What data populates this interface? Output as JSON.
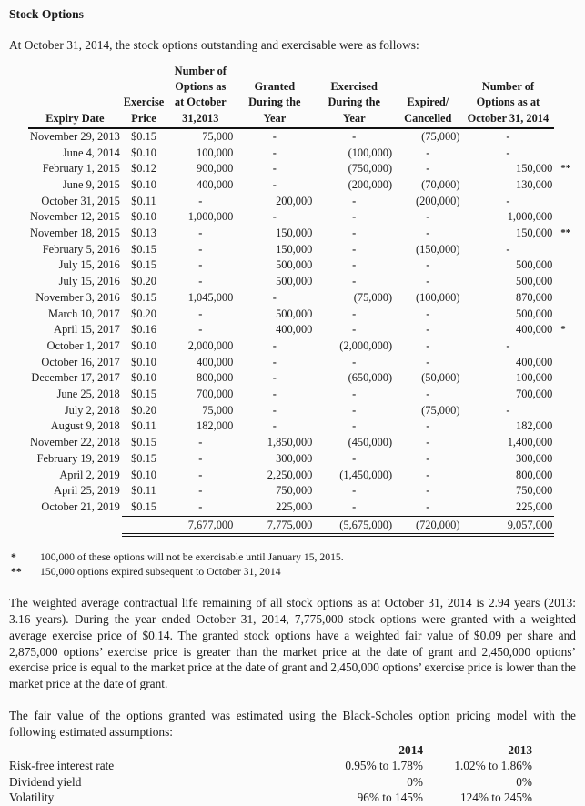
{
  "colors": {
    "background": "#fbfbfb",
    "text": "#1b1b1b",
    "rule": "#111111"
  },
  "page": {
    "title": "Stock Options",
    "intro": "At October 31, 2014, the stock options outstanding and exercisable were as follows:"
  },
  "options_table": {
    "headers": [
      "Expiry Date",
      "Exercise\nPrice",
      "Number of\nOptions as\nat October\n31,2013",
      "Granted\nDuring the\nYear",
      "Exercised\nDuring the\nYear",
      "Expired/\nCancelled",
      "Number of\nOptions as at\nOctober 31, 2014",
      ""
    ],
    "rows": [
      [
        "November 29, 2013",
        "$0.15",
        "75,000",
        "-",
        "-",
        "(75,000)",
        "-",
        ""
      ],
      [
        "June 4, 2014",
        "$0.10",
        "100,000",
        "-",
        "(100,000)",
        "-",
        "-",
        ""
      ],
      [
        "February 1, 2015",
        "$0.12",
        "900,000",
        "-",
        "(750,000)",
        "-",
        "150,000",
        "**"
      ],
      [
        "June 9, 2015",
        "$0.10",
        "400,000",
        "-",
        "(200,000)",
        "(70,000)",
        "130,000",
        ""
      ],
      [
        "October 31, 2015",
        "$0.11",
        "-",
        "200,000",
        "-",
        "(200,000)",
        "-",
        ""
      ],
      [
        "November 12, 2015",
        "$0.10",
        "1,000,000",
        "-",
        "-",
        "-",
        "1,000,000",
        ""
      ],
      [
        "November 18, 2015",
        "$0.13",
        "-",
        "150,000",
        "-",
        "-",
        "150,000",
        "**"
      ],
      [
        "February 5, 2016",
        "$0.15",
        "-",
        "150,000",
        "-",
        "(150,000)",
        "-",
        ""
      ],
      [
        "July 15, 2016",
        "$0.15",
        "-",
        "500,000",
        "-",
        "-",
        "500,000",
        ""
      ],
      [
        "July 15, 2016",
        "$0.20",
        "-",
        "500,000",
        "-",
        "-",
        "500,000",
        ""
      ],
      [
        "November 3, 2016",
        "$0.15",
        "1,045,000",
        "-",
        "(75,000)",
        "(100,000)",
        "870,000",
        ""
      ],
      [
        "March 10, 2017",
        "$0.20",
        "-",
        "500,000",
        "-",
        "-",
        "500,000",
        ""
      ],
      [
        "April 15, 2017",
        "$0.16",
        "-",
        "400,000",
        "-",
        "-",
        "400,000",
        "*"
      ],
      [
        "October 1, 2017",
        "$0.10",
        "2,000,000",
        "-",
        "(2,000,000)",
        "-",
        "-",
        ""
      ],
      [
        "October 16, 2017",
        "$0.10",
        "400,000",
        "-",
        "-",
        "-",
        "400,000",
        ""
      ],
      [
        "December 17, 2017",
        "$0.10",
        "800,000",
        "-",
        "(650,000)",
        "(50,000)",
        "100,000",
        ""
      ],
      [
        "June 25, 2018",
        "$0.15",
        "700,000",
        "-",
        "-",
        "-",
        "700,000",
        ""
      ],
      [
        "July 2, 2018",
        "$0.20",
        "75,000",
        "-",
        "-",
        "(75,000)",
        "-",
        ""
      ],
      [
        "August 9, 2018",
        "$0.11",
        "182,000",
        "-",
        "-",
        "-",
        "182,000",
        ""
      ],
      [
        "November 22, 2018",
        "$0.15",
        "-",
        "1,850,000",
        "(450,000)",
        "-",
        "1,400,000",
        ""
      ],
      [
        "February 19, 2019",
        "$0.15",
        "-",
        "300,000",
        "-",
        "-",
        "300,000",
        ""
      ],
      [
        "April 2, 2019",
        "$0.10",
        "-",
        "2,250,000",
        "(1,450,000)",
        "-",
        "800,000",
        ""
      ],
      [
        "April 25, 2019",
        "$0.11",
        "-",
        "750,000",
        "-",
        "-",
        "750,000",
        ""
      ],
      [
        "October 21, 2019",
        "$0.15",
        "-",
        "225,000",
        "-",
        "-",
        "225,000",
        ""
      ]
    ],
    "totals_row": [
      "",
      "",
      "7,677,000",
      "7,775,000",
      "(5,675,000)",
      "(720,000)",
      "9,057,000",
      ""
    ]
  },
  "footnotes": [
    {
      "marker": "*",
      "text": "100,000 of these options will not be exercisable until January 15, 2015."
    },
    {
      "marker": "**",
      "text": "150,000 options expired subsequent to October 31, 2014"
    }
  ],
  "paragraphs": {
    "p1": "The weighted average contractual life remaining of all stock options as at October 31, 2014 is 2.94 years (2013: 3.16 years). During the year ended October 31, 2014, 7,775,000 stock options were granted with a weighted average exercise price of $0.14.  The granted stock options have a weighted fair value of $0.09 per share and 2,875,000 options’ exercise price is greater than the market price at the date of grant and 2,450,000 options’ exercise price is equal to the market price at the date of grant and 2,450,000 options’ exercise price is lower than the market price at the date of grant.",
    "p2": "The fair value of the options granted was estimated using the Black-Scholes option pricing model with the following estimated assumptions:"
  },
  "assumptions_table": {
    "col_headers": [
      "2014",
      "2013"
    ],
    "rows": [
      {
        "label": "Risk-free interest rate",
        "y2014": "0.95% to 1.78%",
        "y2013": "1.02% to 1.86%"
      },
      {
        "label": "Dividend yield",
        "y2014": "0%",
        "y2013": "0%"
      },
      {
        "label": "Volatility",
        "y2014": "96% to 145%",
        "y2013": "124% to 245%"
      }
    ]
  }
}
